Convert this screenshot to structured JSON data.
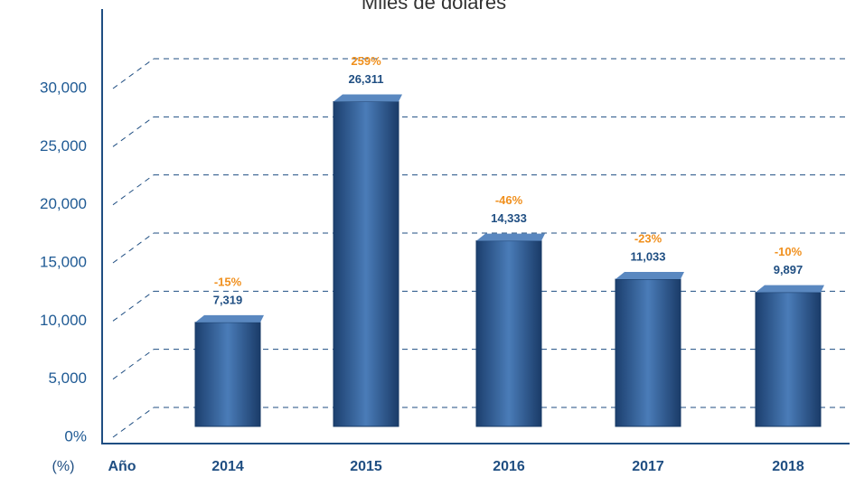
{
  "chart_data": {
    "type": "bar3d",
    "title": "Miles de dólares",
    "categories": [
      "2014",
      "2015",
      "2016",
      "2017",
      "2018"
    ],
    "values": [
      7319,
      26311,
      14333,
      11033,
      9897
    ],
    "value_labels": [
      "7,319",
      "26,311",
      "14,333",
      "11,033",
      "9,897"
    ],
    "change_labels": [
      "-15%",
      "259%",
      "-46%",
      "-23%",
      "-10%"
    ],
    "color": "#2a5a94",
    "ylim": [
      0,
      30000
    ],
    "yticks": [
      {
        "value": 0,
        "label": "0%"
      },
      {
        "value": 5000,
        "label": "5,000"
      },
      {
        "value": 10000,
        "label": "10,000"
      },
      {
        "value": 15000,
        "label": "15,000"
      },
      {
        "value": 20000,
        "label": "20,000"
      },
      {
        "value": 25000,
        "label": "25,000"
      },
      {
        "value": 30000,
        "label": "30,000"
      }
    ],
    "grid": true,
    "x_label_left": "(%)",
    "x_label": "Año"
  }
}
